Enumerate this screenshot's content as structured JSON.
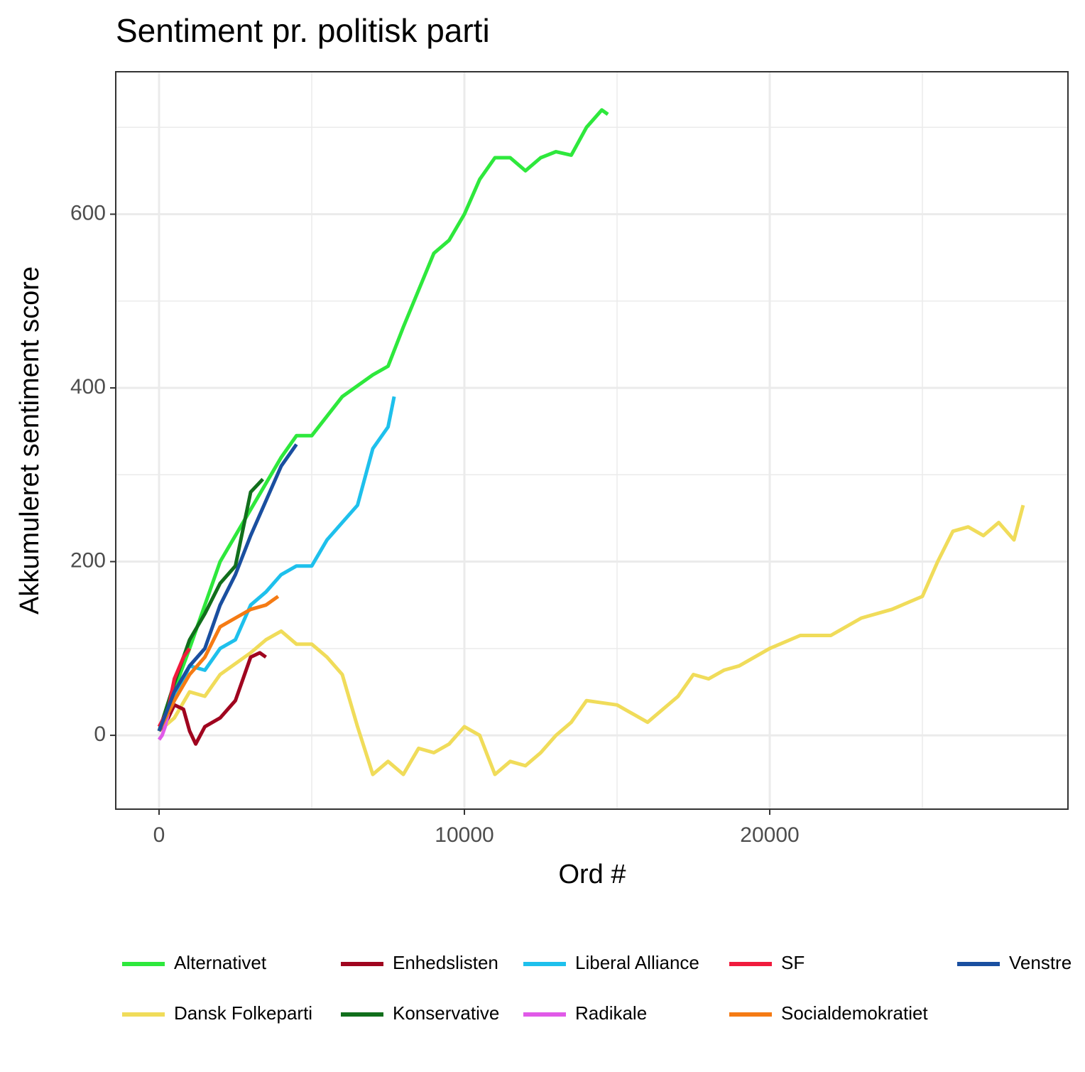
{
  "chart_data": {
    "type": "line",
    "title": "Sentiment pr. politisk parti",
    "x_label": "Ord #",
    "y_label": "Akkumuleret sentiment score",
    "xlim": [
      -1419,
      29767
    ],
    "ylim": [
      -85,
      764
    ],
    "xticks": [
      0,
      10000,
      20000
    ],
    "yticks": [
      0,
      200,
      400,
      600
    ],
    "x_minor_ticks": [
      5000,
      15000,
      25000
    ],
    "y_minor_ticks": [
      100,
      300,
      500,
      700
    ],
    "grid": true,
    "legend": "bottom",
    "series": [
      {
        "name": "Alternativet",
        "color": "#2ee83c",
        "x": [
          0,
          1000,
          2000,
          3000,
          4000,
          4500,
          5000,
          6000,
          7000,
          7500,
          8000,
          9000,
          9500,
          10000,
          10500,
          11000,
          11500,
          12000,
          12500,
          13000,
          13500,
          14000,
          14500,
          14700
        ],
        "values": [
          5,
          100,
          200,
          260,
          320,
          345,
          345,
          390,
          415,
          425,
          470,
          555,
          570,
          600,
          640,
          665,
          665,
          650,
          665,
          672,
          668,
          700,
          720,
          715
        ]
      },
      {
        "name": "Dansk Folkeparti",
        "color": "#f0dc5a",
        "x": [
          0,
          500,
          1000,
          1500,
          2000,
          3000,
          3500,
          4000,
          4500,
          5000,
          5500,
          6000,
          6500,
          7000,
          7500,
          8000,
          8500,
          9000,
          9500,
          10000,
          10500,
          11000,
          11500,
          12000,
          12500,
          13000,
          13500,
          14000,
          15000,
          16000,
          17000,
          17500,
          18000,
          18500,
          19000,
          20000,
          21000,
          22000,
          23000,
          24000,
          25000,
          25500,
          26000,
          26500,
          27000,
          27500,
          28000,
          28300
        ],
        "values": [
          5,
          20,
          50,
          45,
          70,
          95,
          110,
          120,
          105,
          105,
          90,
          70,
          10,
          -45,
          -30,
          -45,
          -15,
          -20,
          -10,
          10,
          0,
          -45,
          -30,
          -35,
          -20,
          0,
          15,
          40,
          35,
          15,
          45,
          70,
          65,
          75,
          80,
          100,
          115,
          115,
          135,
          145,
          160,
          200,
          235,
          240,
          230,
          245,
          225,
          265
        ]
      },
      {
        "name": "Enhedslisten",
        "color": "#a0051f",
        "x": [
          0,
          300,
          500,
          800,
          1000,
          1200,
          1500,
          2000,
          2500,
          2800,
          3000,
          3300,
          3500
        ],
        "values": [
          5,
          20,
          35,
          30,
          5,
          -10,
          10,
          20,
          40,
          70,
          90,
          95,
          90
        ]
      },
      {
        "name": "Konservative",
        "color": "#116f1c",
        "x": [
          0,
          500,
          1000,
          1500,
          2000,
          2500,
          3000,
          3400
        ],
        "values": [
          5,
          60,
          110,
          140,
          175,
          195,
          280,
          295
        ]
      },
      {
        "name": "Liberal Alliance",
        "color": "#1ec0ec",
        "x": [
          0,
          500,
          1000,
          1500,
          2000,
          2500,
          3000,
          3500,
          4000,
          4500,
          5000,
          5500,
          6000,
          6500,
          7000,
          7500,
          7700
        ],
        "values": [
          5,
          40,
          80,
          75,
          100,
          110,
          150,
          165,
          185,
          195,
          195,
          225,
          245,
          265,
          330,
          355,
          390
        ]
      },
      {
        "name": "Radikale",
        "color": "#e05ae8",
        "x": [
          0,
          100,
          200,
          300
        ],
        "values": [
          -5,
          0,
          10,
          25
        ]
      },
      {
        "name": "SF",
        "color": "#f01b3d",
        "x": [
          0,
          300,
          500,
          800,
          1000
        ],
        "values": [
          10,
          30,
          65,
          90,
          100
        ]
      },
      {
        "name": "Socialdemokratiet",
        "color": "#f57b14",
        "x": [
          0,
          500,
          1000,
          1500,
          2000,
          2500,
          3000,
          3500,
          3900
        ],
        "values": [
          5,
          40,
          70,
          90,
          125,
          135,
          145,
          150,
          160
        ]
      },
      {
        "name": "Venstre",
        "color": "#1a4fa0",
        "x": [
          0,
          500,
          1000,
          1500,
          2000,
          2500,
          3000,
          3500,
          4000,
          4500
        ],
        "values": [
          5,
          50,
          80,
          100,
          150,
          185,
          230,
          270,
          310,
          335
        ]
      }
    ]
  }
}
